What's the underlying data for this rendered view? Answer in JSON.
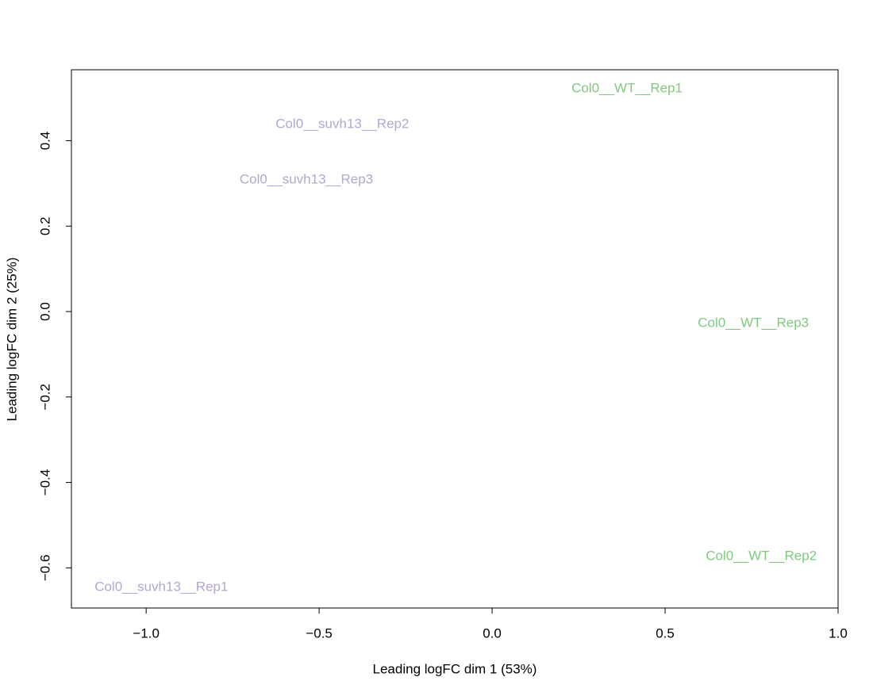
{
  "chart_data": {
    "type": "scatter",
    "xlabel": "Leading logFC dim 1 (53%)",
    "ylabel": "Leading logFC dim 2 (25%)",
    "labels": [
      "Col0__suvh13__Rep1",
      "Col0__suvh13__Rep2",
      "Col0__suvh13__Rep3",
      "Col0__WT__Rep1",
      "Col0__WT__Rep2",
      "Col0__WT__Rep3"
    ],
    "colors": [
      "#b3a6d3",
      "#b3a6d3",
      "#b3a6d3",
      "#7fc97f",
      "#7fc97f",
      "#7fc97f"
    ],
    "x": [
      -0.956,
      -0.433,
      -0.537,
      0.39,
      0.778,
      0.755
    ],
    "values": [
      -0.646,
      0.438,
      0.308,
      0.521,
      -0.573,
      -0.028
    ],
    "xlim": [
      -1.216,
      1.0
    ],
    "ylim": [
      -0.694,
      0.566
    ],
    "xticks": [
      {
        "value": -1.0,
        "label": "−1.0"
      },
      {
        "value": -0.5,
        "label": "−0.5"
      },
      {
        "value": 0,
        "label": "0.0"
      },
      0.5,
      {
        "value": 1.0,
        "label": "1.0"
      }
    ],
    "yticks": [
      {
        "value": -0.6,
        "label": "−0.6"
      },
      {
        "value": -0.4,
        "label": "−0.4"
      },
      {
        "value": -0.2,
        "label": "−0.2"
      },
      {
        "value": 0,
        "label": "0.0"
      },
      0.2,
      0.4
    ],
    "grid": false
  }
}
